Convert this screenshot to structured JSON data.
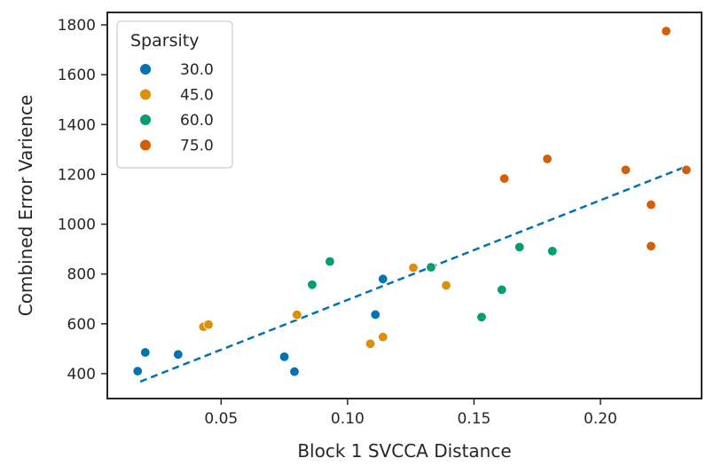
{
  "chart_data": {
    "type": "scatter",
    "xlabel": "Block 1 SVCCA Distance",
    "ylabel": "Combined Error Varience",
    "xlim": [
      0.005,
      0.24
    ],
    "ylim": [
      300,
      1850
    ],
    "xticks": [
      0.05,
      0.1,
      0.15,
      0.2
    ],
    "xtick_labels": [
      "0.05",
      "0.10",
      "0.15",
      "0.20"
    ],
    "yticks": [
      400,
      600,
      800,
      1000,
      1200,
      1400,
      1600,
      1800
    ],
    "ytick_labels": [
      "400",
      "600",
      "800",
      "1000",
      "1200",
      "1400",
      "1600",
      "1800"
    ],
    "grid": false,
    "legend": {
      "title": "Sparsity",
      "placement": "top-left"
    },
    "series": [
      {
        "name": "30.0",
        "color": "#0173b2",
        "points": [
          [
            0.017,
            410
          ],
          [
            0.02,
            485
          ],
          [
            0.033,
            477
          ],
          [
            0.075,
            468
          ],
          [
            0.079,
            408
          ],
          [
            0.111,
            637
          ],
          [
            0.114,
            780
          ]
        ]
      },
      {
        "name": "45.0",
        "color": "#de8f05",
        "points": [
          [
            0.043,
            588
          ],
          [
            0.045,
            597
          ],
          [
            0.08,
            636
          ],
          [
            0.109,
            520
          ],
          [
            0.114,
            547
          ],
          [
            0.126,
            825
          ],
          [
            0.139,
            754
          ]
        ]
      },
      {
        "name": "60.0",
        "color": "#029e73",
        "points": [
          [
            0.086,
            757
          ],
          [
            0.093,
            850
          ],
          [
            0.133,
            827
          ],
          [
            0.153,
            627
          ],
          [
            0.161,
            737
          ],
          [
            0.168,
            908
          ],
          [
            0.181,
            892
          ]
        ]
      },
      {
        "name": "75.0",
        "color": "#d55e00",
        "points": [
          [
            0.162,
            1183
          ],
          [
            0.179,
            1262
          ],
          [
            0.21,
            1218
          ],
          [
            0.22,
            1078
          ],
          [
            0.22,
            912
          ],
          [
            0.226,
            1775
          ],
          [
            0.234,
            1218
          ]
        ]
      }
    ],
    "trendline": {
      "style": "dashed",
      "color": "#0173b2",
      "x": [
        0.018,
        0.234
      ],
      "y": [
        368,
        1232
      ]
    }
  }
}
